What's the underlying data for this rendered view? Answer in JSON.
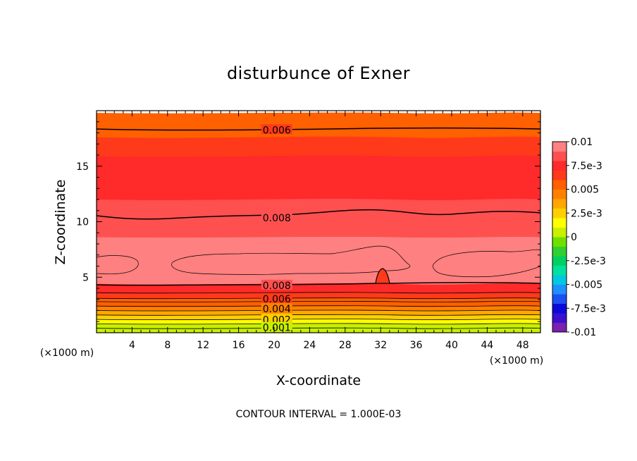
{
  "chart_data": {
    "type": "contour",
    "title": "disturbunce of Exner",
    "xlabel": "X-coordinate",
    "ylabel": "Z-coordinate",
    "x_unit_left": "(×1000 m)",
    "x_unit_right": "(×1000 m)",
    "xlim": [
      0,
      50
    ],
    "ylim": [
      0,
      20
    ],
    "x_ticks": [
      4,
      8,
      12,
      16,
      20,
      24,
      28,
      32,
      36,
      40,
      44,
      48
    ],
    "y_ticks": [
      5,
      10,
      15
    ],
    "footnote": "CONTOUR INTERVAL = 1.000E-03",
    "colorbar": {
      "ticks": [
        "0.01",
        "7.5e-3",
        "0.005",
        "2.5e-3",
        "0",
        "-2.5e-3",
        "-0.005",
        "-7.5e-3",
        "-0.01"
      ],
      "range": [
        -0.01,
        0.01
      ],
      "colors": [
        "#7a1fb0",
        "#3a0fd0",
        "#0a0ad8",
        "#1e4ff0",
        "#1e90ff",
        "#00c8e0",
        "#00e0a0",
        "#00d060",
        "#30d030",
        "#70e000",
        "#c8f000",
        "#ffff00",
        "#ffd000",
        "#ffa800",
        "#ff8000",
        "#ff6000",
        "#ff3a1a",
        "#ff2a2a",
        "#ff5050",
        "#ff8080"
      ]
    },
    "contour_labels": [
      {
        "text": "0.006",
        "x": 20.3,
        "z": 18.2
      },
      {
        "text": "0.008",
        "x": 20.3,
        "z": 10.3
      },
      {
        "text": "0.008",
        "x": 20.3,
        "z": 4.2
      },
      {
        "text": "0.006",
        "x": 20.3,
        "z": 3.0
      },
      {
        "text": "0.004",
        "x": 20.3,
        "z": 2.1
      },
      {
        "text": "0.002",
        "x": 20.3,
        "z": 1.1
      },
      {
        "text": "0.001",
        "x": 20.3,
        "z": 0.4
      }
    ],
    "field_levels": [
      {
        "value": 0.0055,
        "top_z": 19.8
      },
      {
        "value": 0.0063,
        "top_z": 17.6
      },
      {
        "value": 0.007,
        "top_z": 15.9
      },
      {
        "value": 0.0078,
        "top_z": 14.3
      },
      {
        "value": 0.0083,
        "top_z": 12.0
      },
      {
        "value": 0.0088,
        "top_z": 10.1
      },
      {
        "value": 0.0095,
        "top_z": 8.6
      },
      {
        "value": 0.0078,
        "top_z": 4.4
      },
      {
        "value": 0.0066,
        "top_z": 3.6
      },
      {
        "value": 0.0058,
        "top_z": 3.1
      },
      {
        "value": 0.005,
        "top_z": 2.8
      },
      {
        "value": 0.0042,
        "top_z": 2.4
      },
      {
        "value": 0.0034,
        "top_z": 2.0
      },
      {
        "value": 0.0026,
        "top_z": 1.6
      },
      {
        "value": 0.0018,
        "top_z": 1.2
      },
      {
        "value": 0.001,
        "top_z": 0.8
      },
      {
        "value": 0.0004,
        "top_z": 0.4
      }
    ]
  }
}
